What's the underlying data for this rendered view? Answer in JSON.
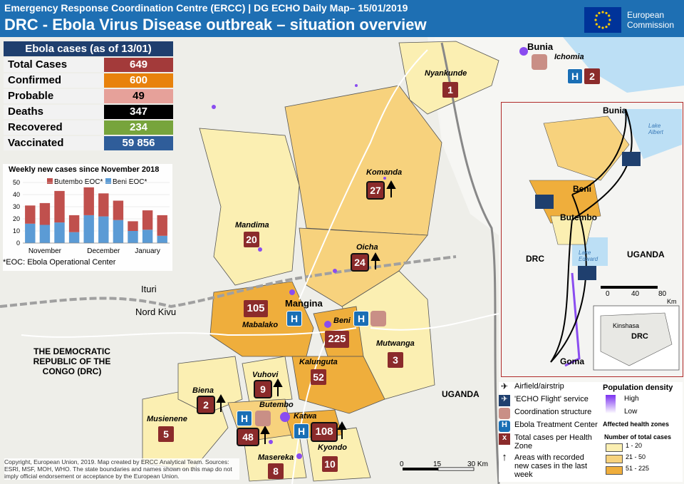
{
  "header": {
    "subtitle": "Emergency Response Coordination Centre (ERCC) | DG ECHO Daily Map– 15/01/2019",
    "title": "DRC - Ebola Virus Disease outbreak – situation overview",
    "eu_logo_text_1": "European",
    "eu_logo_text_2": "Commission"
  },
  "cases": {
    "heading": "Ebola cases (as of 13/01)",
    "rows": [
      {
        "label": "Total Cases",
        "value": "649",
        "color": "#a33a3a",
        "text": "#ffffff"
      },
      {
        "label": "Confirmed",
        "value": "600",
        "color": "#e8820c",
        "text": "#ffffff"
      },
      {
        "label": "Probable",
        "value": "49",
        "color": "#e6a19a",
        "text": "#000000"
      },
      {
        "label": "Deaths",
        "value": "347",
        "color": "#000000",
        "text": "#ffffff"
      },
      {
        "label": "Recovered",
        "value": "234",
        "color": "#77a43c",
        "text": "#ffffff"
      },
      {
        "label": "Vaccinated",
        "value": "59 856",
        "color": "#2f5d9a",
        "text": "#ffffff"
      }
    ]
  },
  "chart_data": {
    "type": "bar",
    "title": "Weekly new cases since November 2018",
    "series": [
      {
        "name": "Beni EOC*",
        "values": [
          16,
          15,
          17,
          9,
          23,
          22,
          19,
          10,
          11,
          6
        ],
        "color": "#5b9bd5"
      },
      {
        "name": "Butembo EOC*",
        "values": [
          15,
          18,
          26,
          14,
          23,
          19,
          16,
          8,
          16,
          17
        ],
        "color": "#c0504d"
      }
    ],
    "categories": [
      "w1",
      "w2",
      "w3",
      "w4",
      "w5",
      "w6",
      "w7",
      "w8",
      "w9",
      "w10"
    ],
    "month_labels": [
      "November",
      "December",
      "January"
    ],
    "yticks": [
      "0",
      "10",
      "20",
      "30",
      "40",
      "50"
    ],
    "ylim": [
      0,
      50
    ],
    "footnote": "*EOC: Ebola Operational Center"
  },
  "map": {
    "health_zones": [
      {
        "name": "Nyankunde",
        "cases": "1"
      },
      {
        "name": "Komanda",
        "cases": "27",
        "new": true
      },
      {
        "name": "Mandima",
        "cases": "20"
      },
      {
        "name": "Oicha",
        "cases": "24",
        "new": true
      },
      {
        "name": "Mabalako",
        "cases": "105"
      },
      {
        "name": "Beni",
        "cases": "225"
      },
      {
        "name": "Mutwanga",
        "cases": "3"
      },
      {
        "name": "Kalunguta",
        "cases": "52"
      },
      {
        "name": "Vuhovi",
        "cases": "9",
        "new": true
      },
      {
        "name": "Biena",
        "cases": "2",
        "new": true
      },
      {
        "name": "Musienene",
        "cases": "5"
      },
      {
        "name": "Butembo",
        "cases": "48",
        "new": true
      },
      {
        "name": "Katwa",
        "cases": "108",
        "new": true
      },
      {
        "name": "Kyondo",
        "cases": "10"
      },
      {
        "name": "Masereka",
        "cases": "8"
      }
    ],
    "places": {
      "bunia": "Bunia",
      "ichomia": "Ichomia",
      "ichomia_cases": "2",
      "mangina": "Mangina",
      "ituri": "Ituri",
      "nord_kivu": "Nord Kivu",
      "uganda": "UGANDA",
      "drc_long": "THE DEMOCRATIC REPUBLIC OF THE CONGO (DRC)"
    },
    "scale": {
      "labels": [
        "0",
        "15",
        "30 Km"
      ]
    }
  },
  "inset": {
    "places": [
      "Bunia",
      "Beni",
      "Butembo",
      "Goma"
    ],
    "lakes": [
      "Lake Albert",
      "Lake Edward"
    ],
    "drc": "DRC",
    "uganda": "UGANDA",
    "scale": [
      "0",
      "40",
      "80",
      "Km"
    ],
    "kinshasa": "Kinshasa",
    "mini_drc": "DRC"
  },
  "legend": {
    "airfield": "Airfield/airstrip",
    "echo_flight": "'ECHO Flight' service",
    "coordination": "Coordination structure",
    "etc": "Ebola Treatment Center",
    "total_cases": "Total cases per Health Zone",
    "new_cases": "Areas with recorded new cases in the last week",
    "pop_title": "Population density",
    "pop_high": "High",
    "pop_low": "Low",
    "affected_title": "Affected health zones",
    "number_title": "Number of total cases",
    "classes": [
      {
        "label": "1 - 20",
        "color": "#fbefb2"
      },
      {
        "label": "21 - 50",
        "color": "#f7d27d"
      },
      {
        "label": "51 - 225",
        "color": "#efae3c"
      }
    ],
    "etc_symbol": "H",
    "cases_symbol": "x"
  },
  "copyright": "Copyright, European Union, 2019. Map created by ERCC Analytical Team. Sources: ESRI, MSF, MOH, WHO. The state boundaries and names shown on this map do not imply official endorsement or acceptance by the European Union."
}
